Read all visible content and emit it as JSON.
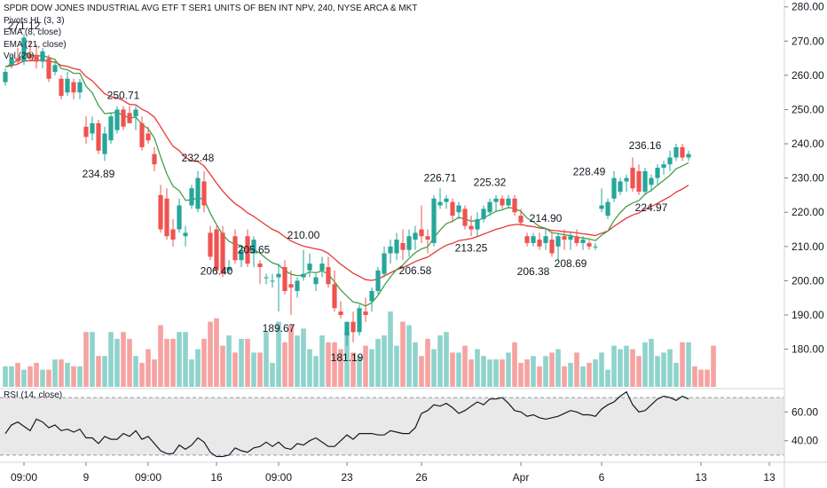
{
  "header": {
    "title": "SPDR DOW JONES INDUSTRIAL AVG ETF T SER1 UNITS OF BEN INT NPV, 240, NYSE ARCA & MKT",
    "indicators": [
      "Pivots HL (3, 3)",
      "EMA (8, close)",
      "EMA (21, close)",
      "Vol (20)"
    ],
    "rsi_label": "RSI (14, close)"
  },
  "colors": {
    "up": "#26a69a",
    "down": "#ef5350",
    "vol_up": "#8fd3cc",
    "vol_down": "#f5a3a1",
    "ema_fast": "#43a047",
    "ema_slow": "#e53935",
    "rsi_line": "#131722",
    "rsi_band": "#e9e9e9"
  },
  "chart_data": {
    "type": "candlestick",
    "price_axis": {
      "ticks": [
        180,
        190,
        200,
        210,
        220,
        230,
        240,
        250,
        260,
        270,
        280
      ],
      "labels": [
        "180.00",
        "190.00",
        "200.00",
        "210.00",
        "220.00",
        "230.00",
        "240.00",
        "250.00",
        "260.00",
        "270.00",
        "280.00"
      ],
      "range": [
        169,
        282
      ]
    },
    "rsi_axis": {
      "ticks": [
        40,
        60
      ],
      "labels": [
        "40.00",
        "60.00"
      ],
      "range": [
        25,
        75
      ],
      "band": [
        30,
        70
      ]
    },
    "time_axis": [
      {
        "label": "09:00",
        "bar": 3
      },
      {
        "label": "9",
        "bar": 13
      },
      {
        "label": "09:00",
        "bar": 23
      },
      {
        "label": "16",
        "bar": 34
      },
      {
        "label": "09:00",
        "bar": 44
      },
      {
        "label": "23",
        "bar": 55
      },
      {
        "label": "26",
        "bar": 67
      },
      {
        "label": "Apr",
        "bar": 83
      },
      {
        "label": "6",
        "bar": 96
      },
      {
        "label": "13",
        "bar": 112
      },
      {
        "label": "13",
        "bar": 123
      }
    ],
    "candles": [
      {
        "o": 258,
        "h": 262,
        "l": 257,
        "c": 261
      },
      {
        "o": 263,
        "h": 266,
        "l": 262,
        "c": 265
      },
      {
        "o": 265,
        "h": 268,
        "l": 263,
        "c": 264
      },
      {
        "o": 264,
        "h": 272,
        "l": 263,
        "c": 271
      },
      {
        "o": 266,
        "h": 270,
        "l": 264,
        "c": 265
      },
      {
        "o": 266,
        "h": 269,
        "l": 262,
        "c": 264
      },
      {
        "o": 264,
        "h": 268,
        "l": 262,
        "c": 267
      },
      {
        "o": 265,
        "h": 266,
        "l": 258,
        "c": 259
      },
      {
        "o": 261,
        "h": 264,
        "l": 260,
        "c": 263
      },
      {
        "o": 259,
        "h": 260,
        "l": 253,
        "c": 254
      },
      {
        "o": 255,
        "h": 261,
        "l": 254,
        "c": 259
      },
      {
        "o": 258,
        "h": 259,
        "l": 253,
        "c": 255
      },
      {
        "o": 255,
        "h": 259,
        "l": 253,
        "c": 258
      },
      {
        "o": 245,
        "h": 248,
        "l": 240,
        "c": 242
      },
      {
        "o": 243,
        "h": 248,
        "l": 241,
        "c": 246
      },
      {
        "o": 246,
        "h": 247,
        "l": 237,
        "c": 238
      },
      {
        "o": 237,
        "h": 245,
        "l": 235,
        "c": 243
      },
      {
        "o": 241,
        "h": 249,
        "l": 240,
        "c": 248
      },
      {
        "o": 244,
        "h": 251,
        "l": 243,
        "c": 250
      },
      {
        "o": 250,
        "h": 251,
        "l": 244,
        "c": 245
      },
      {
        "o": 249,
        "h": 251,
        "l": 246,
        "c": 246
      },
      {
        "o": 248,
        "h": 251,
        "l": 244,
        "c": 250
      },
      {
        "o": 246,
        "h": 248,
        "l": 238,
        "c": 239
      },
      {
        "o": 243,
        "h": 245,
        "l": 240,
        "c": 241
      },
      {
        "o": 237,
        "h": 239,
        "l": 232,
        "c": 234
      },
      {
        "o": 225,
        "h": 228,
        "l": 214,
        "c": 215
      },
      {
        "o": 224,
        "h": 227,
        "l": 212,
        "c": 213
      },
      {
        "o": 215,
        "h": 218,
        "l": 210,
        "c": 212
      },
      {
        "o": 215,
        "h": 224,
        "l": 214,
        "c": 222
      },
      {
        "o": 213,
        "h": 216,
        "l": 210,
        "c": 214
      },
      {
        "o": 222,
        "h": 228,
        "l": 221,
        "c": 227
      },
      {
        "o": 221,
        "h": 232,
        "l": 220,
        "c": 230
      },
      {
        "o": 229,
        "h": 232,
        "l": 220,
        "c": 222
      },
      {
        "o": 214,
        "h": 216,
        "l": 206,
        "c": 207
      },
      {
        "o": 215,
        "h": 216,
        "l": 202,
        "c": 203
      },
      {
        "o": 214,
        "h": 216,
        "l": 201,
        "c": 202
      },
      {
        "o": 203,
        "h": 206,
        "l": 202,
        "c": 204
      },
      {
        "o": 213,
        "h": 215,
        "l": 205,
        "c": 206
      },
      {
        "o": 206,
        "h": 210,
        "l": 204,
        "c": 209
      },
      {
        "o": 213,
        "h": 215,
        "l": 204,
        "c": 205
      },
      {
        "o": 208,
        "h": 213,
        "l": 204,
        "c": 212
      },
      {
        "o": 205,
        "h": 206,
        "l": 199,
        "c": 204
      },
      {
        "o": 201,
        "h": 202,
        "l": 199,
        "c": 201
      },
      {
        "o": 200,
        "h": 202,
        "l": 198,
        "c": 200
      },
      {
        "o": 201,
        "h": 205,
        "l": 191,
        "c": 202
      },
      {
        "o": 204,
        "h": 206,
        "l": 196,
        "c": 197
      },
      {
        "o": 199,
        "h": 203,
        "l": 190,
        "c": 198
      },
      {
        "o": 197,
        "h": 201,
        "l": 195,
        "c": 200
      },
      {
        "o": 201,
        "h": 209,
        "l": 200,
        "c": 202
      },
      {
        "o": 203,
        "h": 208,
        "l": 201,
        "c": 205
      },
      {
        "o": 199,
        "h": 202,
        "l": 197,
        "c": 201
      },
      {
        "o": 203,
        "h": 207,
        "l": 201,
        "c": 205
      },
      {
        "o": 204,
        "h": 207,
        "l": 198,
        "c": 199
      },
      {
        "o": 199,
        "h": 203,
        "l": 191,
        "c": 192
      },
      {
        "o": 191,
        "h": 194,
        "l": 189,
        "c": 190
      },
      {
        "o": 184,
        "h": 187,
        "l": 181,
        "c": 188
      },
      {
        "o": 188,
        "h": 191,
        "l": 182,
        "c": 185
      },
      {
        "o": 185,
        "h": 193,
        "l": 184,
        "c": 192
      },
      {
        "o": 191,
        "h": 195,
        "l": 188,
        "c": 190
      },
      {
        "o": 194,
        "h": 198,
        "l": 191,
        "c": 197
      },
      {
        "o": 197,
        "h": 204,
        "l": 196,
        "c": 203
      },
      {
        "o": 202,
        "h": 210,
        "l": 201,
        "c": 208
      },
      {
        "o": 208,
        "h": 212,
        "l": 205,
        "c": 210
      },
      {
        "o": 208,
        "h": 214,
        "l": 206,
        "c": 212
      },
      {
        "o": 211,
        "h": 215,
        "l": 206,
        "c": 209
      },
      {
        "o": 209,
        "h": 215,
        "l": 207,
        "c": 213
      },
      {
        "o": 212,
        "h": 216,
        "l": 209,
        "c": 214
      },
      {
        "o": 215,
        "h": 222,
        "l": 211,
        "c": 213
      },
      {
        "o": 213,
        "h": 215,
        "l": 208,
        "c": 212
      },
      {
        "o": 211,
        "h": 225,
        "l": 210,
        "c": 224
      },
      {
        "o": 222,
        "h": 227,
        "l": 221,
        "c": 223
      },
      {
        "o": 223,
        "h": 225,
        "l": 221,
        "c": 224
      },
      {
        "o": 223,
        "h": 224,
        "l": 217,
        "c": 219
      },
      {
        "o": 220,
        "h": 223,
        "l": 218,
        "c": 222
      },
      {
        "o": 221,
        "h": 222,
        "l": 215,
        "c": 216
      },
      {
        "o": 216,
        "h": 219,
        "l": 213,
        "c": 215
      },
      {
        "o": 215,
        "h": 220,
        "l": 213,
        "c": 218
      },
      {
        "o": 218,
        "h": 222,
        "l": 217,
        "c": 221
      },
      {
        "o": 220,
        "h": 224,
        "l": 219,
        "c": 223
      },
      {
        "o": 223,
        "h": 225,
        "l": 220,
        "c": 224
      },
      {
        "o": 224,
        "h": 225,
        "l": 221,
        "c": 222
      },
      {
        "o": 222,
        "h": 225,
        "l": 221,
        "c": 224
      },
      {
        "o": 224,
        "h": 225,
        "l": 219,
        "c": 220
      },
      {
        "o": 219,
        "h": 221,
        "l": 216,
        "c": 217
      },
      {
        "o": 213,
        "h": 214,
        "l": 210,
        "c": 211
      },
      {
        "o": 211,
        "h": 214,
        "l": 210,
        "c": 213
      },
      {
        "o": 212,
        "h": 214,
        "l": 209,
        "c": 210
      },
      {
        "o": 211,
        "h": 215,
        "l": 209,
        "c": 213
      },
      {
        "o": 212,
        "h": 214,
        "l": 207,
        "c": 208
      },
      {
        "o": 210,
        "h": 214,
        "l": 206,
        "c": 213
      },
      {
        "o": 213,
        "h": 215,
        "l": 209,
        "c": 212
      },
      {
        "o": 212,
        "h": 214,
        "l": 209,
        "c": 213
      },
      {
        "o": 213,
        "h": 215,
        "l": 210,
        "c": 211
      },
      {
        "o": 211,
        "h": 213,
        "l": 209,
        "c": 212
      },
      {
        "o": 211,
        "h": 212,
        "l": 209,
        "c": 210
      },
      {
        "o": 210,
        "h": 211,
        "l": 209,
        "c": 210
      },
      {
        "o": 221,
        "h": 227,
        "l": 220,
        "c": 222
      },
      {
        "o": 219,
        "h": 224,
        "l": 218,
        "c": 223
      },
      {
        "o": 224,
        "h": 232,
        "l": 223,
        "c": 230
      },
      {
        "o": 226,
        "h": 230,
        "l": 225,
        "c": 229
      },
      {
        "o": 229,
        "h": 231,
        "l": 226,
        "c": 230
      },
      {
        "o": 233,
        "h": 236,
        "l": 226,
        "c": 227
      },
      {
        "o": 232,
        "h": 234,
        "l": 225,
        "c": 226
      },
      {
        "o": 226,
        "h": 233,
        "l": 225,
        "c": 232
      },
      {
        "o": 228,
        "h": 231,
        "l": 226,
        "c": 230
      },
      {
        "o": 230,
        "h": 234,
        "l": 228,
        "c": 233
      },
      {
        "o": 233,
        "h": 235,
        "l": 231,
        "c": 234
      },
      {
        "o": 234,
        "h": 238,
        "l": 232,
        "c": 236
      },
      {
        "o": 236,
        "h": 240,
        "l": 235,
        "c": 239
      },
      {
        "o": 239,
        "h": 240,
        "l": 235,
        "c": 236
      },
      {
        "o": 236,
        "h": 238,
        "l": 235,
        "c": 237
      }
    ],
    "volume": [
      6,
      6,
      7,
      5,
      6,
      7,
      5,
      5,
      8,
      8,
      7,
      6,
      6,
      16,
      16,
      9,
      9,
      16,
      14,
      16,
      14,
      9,
      7,
      11,
      8,
      18,
      14,
      14,
      16,
      16,
      8,
      11,
      14,
      19,
      20,
      12,
      15,
      10,
      14,
      14,
      10,
      10,
      16,
      7,
      19,
      13,
      18,
      15,
      17,
      11,
      9,
      15,
      13,
      13,
      11,
      16,
      10,
      9,
      12,
      11,
      14,
      15,
      22,
      12,
      19,
      18,
      13,
      9,
      14,
      11,
      15,
      16,
      10,
      10,
      12,
      8,
      11,
      9,
      8,
      8,
      8,
      10,
      13,
      7,
      8,
      9,
      6,
      9,
      10,
      11,
      6,
      7,
      10,
      6,
      7,
      8,
      10,
      5,
      12,
      11,
      12,
      11,
      9,
      13,
      14,
      9,
      10,
      11,
      7,
      13,
      13,
      6,
      5,
      5,
      12
    ],
    "ema8": [
      262.5,
      263.2,
      264.5,
      266.4,
      266.1,
      265.6,
      265.8,
      265.2,
      264.6,
      262.0,
      261.6,
      260.6,
      260.6,
      256.8,
      254.9,
      251.2,
      248.8,
      249.0,
      249.2,
      248.3,
      247.5,
      247.8,
      245.6,
      244.4,
      241.7,
      236.2,
      231.2,
      227.6,
      226.3,
      223.5,
      223.6,
      224.2,
      223.8,
      219.7,
      216.4,
      213.4,
      211.5,
      210.6,
      210.3,
      208.7,
      209.2,
      208.0,
      206.5,
      205.2,
      204.6,
      203.0,
      201.9,
      201.5,
      201.6,
      202.6,
      202.3,
      202.9,
      201.9,
      199.7,
      197.3,
      195.5,
      193.8,
      193.4,
      192.6,
      193.6,
      195.7,
      198.6,
      201.1,
      203.3,
      204.6,
      206.5,
      208.2,
      209.3,
      209.9,
      212.6,
      214.8,
      216.7,
      217.4,
      218.5,
      218.0,
      217.4,
      217.6,
      218.3,
      219.3,
      220.3,
      220.7,
      221.4,
      221.1,
      220.3,
      218.3,
      217.2,
      215.8,
      215.3,
      214.0,
      213.8,
      213.4,
      213.2,
      212.7,
      212.5,
      212.2,
      211.7,
      213.3,
      214.5,
      217.6,
      219.9,
      221.7,
      222.7,
      223.4,
      225.3,
      226.4,
      227.9,
      229.3,
      230.8,
      232.7,
      233.5,
      234.5
    ],
    "ema21": [
      262.5,
      262.8,
      263.3,
      264.2,
      264.3,
      264.3,
      264.5,
      264.0,
      263.9,
      262.9,
      262.6,
      262.0,
      261.6,
      259.6,
      258.4,
      256.5,
      254.6,
      253.8,
      253.4,
      252.6,
      251.5,
      251.4,
      250.1,
      249.2,
      247.8,
      245.0,
      242.0,
      239.3,
      238.0,
      236.0,
      235.0,
      234.8,
      233.5,
      231.1,
      228.5,
      226.2,
      224.2,
      222.5,
      221.3,
      219.8,
      218.8,
      217.5,
      216.2,
      215.0,
      214.2,
      212.8,
      211.6,
      210.8,
      210.1,
      209.7,
      209.3,
      208.9,
      208.0,
      206.4,
      204.8,
      203.5,
      202.2,
      201.3,
      200.3,
      200.1,
      200.5,
      201.4,
      202.3,
      203.2,
      203.8,
      204.7,
      205.6,
      206.3,
      206.9,
      208.1,
      209.3,
      210.4,
      210.9,
      211.7,
      212.0,
      212.3,
      212.9,
      213.6,
      214.3,
      215.0,
      215.5,
      216.1,
      216.4,
      216.5,
      216.0,
      215.8,
      215.4,
      215.2,
      214.7,
      214.6,
      214.3,
      214.2,
      214.0,
      213.7,
      213.5,
      213.2,
      213.9,
      214.5,
      215.9,
      217.1,
      218.3,
      219.2,
      219.8,
      220.9,
      221.7,
      222.6,
      223.6,
      224.6,
      225.9,
      226.8,
      227.9
    ],
    "pivots": [
      {
        "bar": 3,
        "price": 271.12,
        "label": "271.12",
        "pos": "above"
      },
      {
        "bar": 15,
        "price": 234.89,
        "label": "234.89",
        "pos": "below"
      },
      {
        "bar": 19,
        "price": 250.71,
        "label": "250.71",
        "pos": "above"
      },
      {
        "bar": 31,
        "price": 232.48,
        "label": "232.48",
        "pos": "above"
      },
      {
        "bar": 34,
        "price": 206.4,
        "label": "206.40",
        "pos": "below"
      },
      {
        "bar": 40,
        "price": 205.65,
        "label": "205.65",
        "pos": "above"
      },
      {
        "bar": 44,
        "price": 189.67,
        "label": "189.67",
        "pos": "below"
      },
      {
        "bar": 48,
        "price": 210.0,
        "label": "210.00",
        "pos": "above"
      },
      {
        "bar": 55,
        "price": 181.19,
        "label": "181.19",
        "pos": "below"
      },
      {
        "bar": 66,
        "price": 206.58,
        "label": "206.58",
        "pos": "below"
      },
      {
        "bar": 70,
        "price": 226.71,
        "label": "226.71",
        "pos": "above"
      },
      {
        "bar": 75,
        "price": 213.25,
        "label": "213.25",
        "pos": "below"
      },
      {
        "bar": 78,
        "price": 225.32,
        "label": "225.32",
        "pos": "above"
      },
      {
        "bar": 85,
        "price": 206.38,
        "label": "206.38",
        "pos": "below"
      },
      {
        "bar": 87,
        "price": 214.9,
        "label": "214.90",
        "pos": "above"
      },
      {
        "bar": 91,
        "price": 208.69,
        "label": "208.69",
        "pos": "below"
      },
      {
        "bar": 94,
        "price": 228.49,
        "label": "228.49",
        "pos": "above"
      },
      {
        "bar": 103,
        "price": 236.16,
        "label": "236.16",
        "pos": "above"
      },
      {
        "bar": 104,
        "price": 224.97,
        "label": "224.97",
        "pos": "below"
      }
    ],
    "rsi": [
      45,
      51,
      53,
      50,
      47,
      55,
      53,
      49,
      51,
      47,
      48,
      46,
      48,
      42,
      42,
      38,
      43,
      41,
      41,
      45,
      43,
      47,
      41,
      43,
      38,
      33,
      31,
      31,
      37,
      34,
      37,
      42,
      39,
      32,
      29,
      29,
      30,
      35,
      33,
      32,
      35,
      36,
      39,
      36,
      39,
      35,
      34,
      38,
      37,
      40,
      42,
      39,
      36,
      36,
      40,
      44,
      41,
      45,
      45,
      45,
      44,
      44,
      47,
      46,
      45,
      45,
      49,
      59,
      61,
      65,
      64,
      66,
      63,
      59,
      61,
      64,
      67,
      65,
      69,
      69,
      70,
      66,
      61,
      60,
      57,
      58,
      56,
      55,
      56,
      57,
      59,
      61,
      60,
      58,
      58,
      57,
      62,
      65,
      67,
      71,
      74,
      65,
      60,
      61,
      65,
      69,
      71,
      70,
      68,
      71,
      69
    ],
    "ylim": [
      169,
      282
    ],
    "grid": false
  }
}
